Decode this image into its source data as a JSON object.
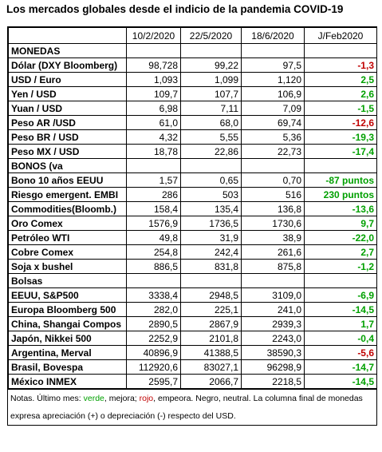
{
  "title": "Los mercados globales desde el indicio de la pandemia COVID-19",
  "table": {
    "header": [
      "10/2/2020",
      "22/5/2020",
      "18/6/2020",
      "J/Feb2020"
    ],
    "sections": [
      {
        "name": "MONEDAS",
        "rows": [
          {
            "cells": [
              "Dólar (DXY Bloomberg)",
              "98,728",
              "99,22",
              "97,5",
              "-1,3"
            ],
            "color": "#c00000"
          },
          {
            "cells": [
              "USD / Euro",
              "1,093",
              "1,099",
              "1,120",
              "2,5"
            ],
            "color": "#00a000"
          },
          {
            "cells": [
              "Yen / USD",
              "109,7",
              "107,7",
              "106,9",
              "2,6"
            ],
            "color": "#00a000"
          },
          {
            "cells": [
              "Yuan / USD",
              "6,98",
              "7,11",
              "7,09",
              "-1,5"
            ],
            "color": "#00a000"
          },
          {
            "cells": [
              "Peso AR /USD",
              "61,0",
              "68,0",
              "69,74",
              "-12,6"
            ],
            "color": "#c00000"
          },
          {
            "cells": [
              "Peso BR / USD",
              "4,32",
              "5,55",
              "5,36",
              "-19,3"
            ],
            "color": "#00a000"
          },
          {
            "cells": [
              "Peso MX / USD",
              "18,78",
              "22,86",
              "22,73",
              "-17,4"
            ],
            "color": "#00a000"
          }
        ]
      },
      {
        "name": "BONOS (va",
        "rows": [
          {
            "cells": [
              "Bono 10 años EEUU",
              "1,57",
              "0,65",
              "0,70",
              "-87 puntos"
            ],
            "color": "#00a000"
          },
          {
            "cells": [
              "Riesgo emergent. EMBI",
              "286",
              "503",
              "516",
              "230 puntos"
            ],
            "color": "#00a000"
          },
          {
            "cells": [
              "Commodities(Bloomb.)",
              "158,4",
              "135,4",
              "136,8",
              "-13,6"
            ],
            "color": "#00a000"
          },
          {
            "cells": [
              "Oro Comex",
              "1576,9",
              "1736,5",
              "1730,6",
              "9,7"
            ],
            "color": "#00a000"
          },
          {
            "cells": [
              "Petróleo WTI",
              "49,8",
              "31,9",
              "38,9",
              "-22,0"
            ],
            "color": "#00a000"
          },
          {
            "cells": [
              "Cobre Comex",
              "254,8",
              "242,4",
              "261,6",
              "2,7"
            ],
            "color": "#00a000"
          },
          {
            "cells": [
              "Soja x bushel",
              "886,5",
              "831,8",
              "875,8",
              "-1,2"
            ],
            "color": "#00a000"
          }
        ]
      },
      {
        "name": "Bolsas",
        "rows": [
          {
            "cells": [
              "EEUU, S&P500",
              "3338,4",
              "2948,5",
              "3109,0",
              "-6,9"
            ],
            "color": "#00a000"
          },
          {
            "cells": [
              "Europa Bloomberg 500",
              "282,0",
              "225,1",
              "241,0",
              "-14,5"
            ],
            "color": "#00a000"
          },
          {
            "cells": [
              "China, Shangai Compos",
              "2890,5",
              "2867,9",
              "2939,3",
              "1,7"
            ],
            "color": "#00a000"
          },
          {
            "cells": [
              "Japón, Nikkei 500",
              "2252,9",
              "2101,8",
              "2243,0",
              "-0,4"
            ],
            "color": "#00a000"
          },
          {
            "cells": [
              "Argentina, Merval",
              "40896,9",
              "41388,5",
              "38590,3",
              "-5,6"
            ],
            "color": "#c00000"
          },
          {
            "cells": [
              "Brasil, Bovespa",
              "112920,6",
              "83027,1",
              "96298,9",
              "-14,7"
            ],
            "color": "#00a000"
          },
          {
            "cells": [
              "México INMEX",
              "2595,7",
              "2066,7",
              "2218,5",
              "-14,5"
            ],
            "color": "#00a000"
          }
        ]
      }
    ]
  },
  "notes": [
    {
      "text": "Notas. Último mes: "
    },
    {
      "text": "verde",
      "color": "#00a000"
    },
    {
      "text": ", mejora; "
    },
    {
      "text": "rojo",
      "color": "#c00000"
    },
    {
      "text": ", empeora. Negro, neutral. La columna final de monedas expresa apreciación (+) o depreciación (-) respecto del USD."
    }
  ]
}
